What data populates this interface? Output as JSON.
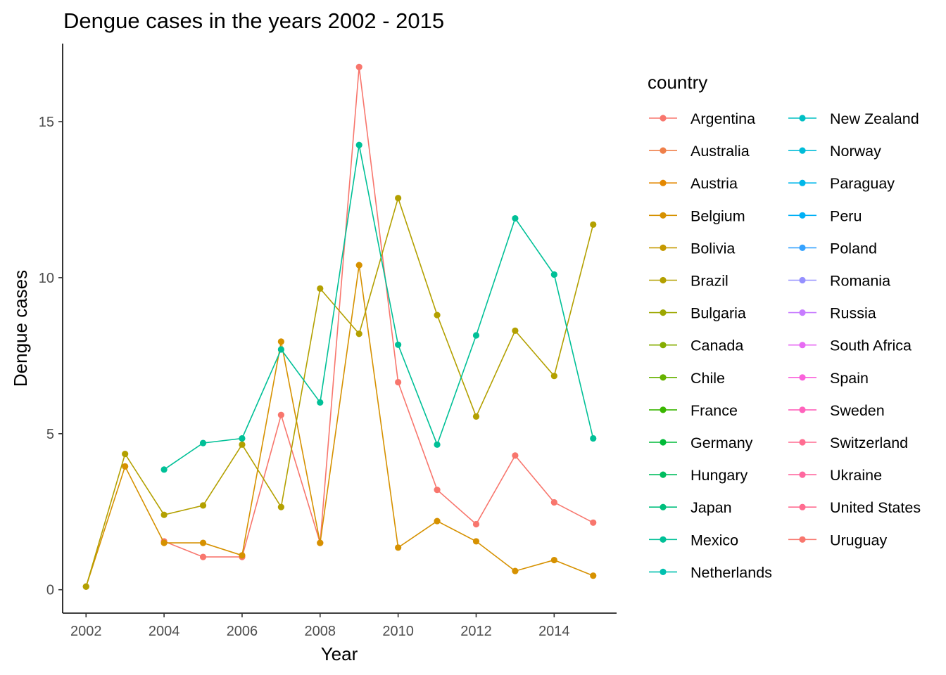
{
  "chart_data": {
    "type": "line",
    "title": "Dengue cases in the years 2002 - 2015",
    "xlabel": "Year",
    "ylabel": "Dengue cases",
    "xlim": [
      2001.4,
      2015.6
    ],
    "ylim": [
      -0.75,
      17.5
    ],
    "x_ticks": [
      2002,
      2004,
      2006,
      2008,
      2010,
      2012,
      2014
    ],
    "y_ticks": [
      0,
      5,
      10,
      15
    ],
    "grid": false,
    "legend": {
      "title": "country",
      "placement": "right",
      "columns": 2,
      "entries": [
        {
          "name": "Argentina",
          "color": "#F8766D"
        },
        {
          "name": "Australia",
          "color": "#EF7F49"
        },
        {
          "name": "Austria",
          "color": "#E48800"
        },
        {
          "name": "Belgium",
          "color": "#D69100"
        },
        {
          "name": "Bolivia",
          "color": "#C59900"
        },
        {
          "name": "Brazil",
          "color": "#B3A000"
        },
        {
          "name": "Bulgaria",
          "color": "#9DA700"
        },
        {
          "name": "Canada",
          "color": "#85AD00"
        },
        {
          "name": "Chile",
          "color": "#66B200"
        },
        {
          "name": "France",
          "color": "#39B600"
        },
        {
          "name": "Germany",
          "color": "#00BA38"
        },
        {
          "name": "Hungary",
          "color": "#00BD5F"
        },
        {
          "name": "Japan",
          "color": "#00BF7D"
        },
        {
          "name": "Mexico",
          "color": "#00C097"
        },
        {
          "name": "Netherlands",
          "color": "#00C0AF"
        },
        {
          "name": "New Zealand",
          "color": "#00BFC4"
        },
        {
          "name": "Norway",
          "color": "#00BCD8"
        },
        {
          "name": "Paraguay",
          "color": "#00B7E9"
        },
        {
          "name": "Peru",
          "color": "#00B0F6"
        },
        {
          "name": "Poland",
          "color": "#35A2FF"
        },
        {
          "name": "Romania",
          "color": "#9590FF"
        },
        {
          "name": "Russia",
          "color": "#C77CFF"
        },
        {
          "name": "South Africa",
          "color": "#E76BF3"
        },
        {
          "name": "Spain",
          "color": "#FA62DB"
        },
        {
          "name": "Sweden",
          "color": "#FF62BC"
        },
        {
          "name": "Switzerland",
          "color": "#FF6C91"
        },
        {
          "name": "Ukraine",
          "color": "#FF689F"
        },
        {
          "name": "United States",
          "color": "#FF6C90"
        },
        {
          "name": "Uruguay",
          "color": "#F8766D"
        }
      ]
    },
    "series": [
      {
        "name": "Argentina",
        "color": "#F8766D",
        "x": [
          2004,
          2005,
          2006,
          2007,
          2008,
          2009,
          2010,
          2011,
          2012,
          2013,
          2014,
          2015
        ],
        "y": [
          1.55,
          1.05,
          1.05,
          5.6,
          1.5,
          16.75,
          6.65,
          3.2,
          2.1,
          4.3,
          2.8,
          2.15
        ]
      },
      {
        "name": "Belgium",
        "color": "#D69100",
        "x": [
          2002,
          2003,
          2004,
          2005,
          2006,
          2007,
          2008,
          2009,
          2010,
          2011,
          2012,
          2013,
          2014,
          2015
        ],
        "y": [
          0.1,
          3.95,
          1.5,
          1.5,
          1.1,
          7.95,
          1.5,
          10.4,
          1.35,
          2.2,
          1.55,
          0.6,
          0.95,
          0.45
        ]
      },
      {
        "name": "Brazil",
        "color": "#B3A000",
        "x": [
          2002,
          2003,
          2004,
          2005,
          2006,
          2007,
          2008,
          2009,
          2010,
          2011,
          2012,
          2013,
          2014,
          2015
        ],
        "y": [
          0.1,
          4.35,
          2.4,
          2.7,
          4.65,
          2.65,
          9.65,
          8.2,
          12.55,
          8.8,
          5.55,
          8.3,
          6.85,
          11.7
        ]
      },
      {
        "name": "Mexico",
        "color": "#00C097",
        "x": [
          2004,
          2005,
          2006,
          2007,
          2008,
          2009,
          2010,
          2011,
          2012,
          2013,
          2014,
          2015
        ],
        "y": [
          3.85,
          4.7,
          4.85,
          7.7,
          6.0,
          14.25,
          7.85,
          4.65,
          8.15,
          11.9,
          10.1,
          4.85
        ]
      }
    ]
  }
}
